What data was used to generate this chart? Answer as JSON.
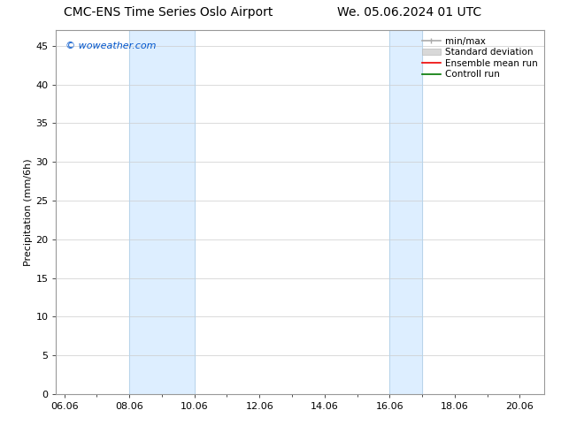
{
  "title_left": "CMC-ENS Time Series Oslo Airport",
  "title_right": "We. 05.06.2024 01 UTC",
  "ylabel": "Precipitation (mm/6h)",
  "watermark": "© woweather.com",
  "watermark_color": "#0055cc",
  "xlim_start": 5.75,
  "xlim_end": 20.75,
  "ylim_bottom": 0,
  "ylim_top": 47,
  "yticks": [
    0,
    5,
    10,
    15,
    20,
    25,
    30,
    35,
    40,
    45
  ],
  "xtick_labels": [
    "06.06",
    "08.06",
    "10.06",
    "12.06",
    "14.06",
    "16.06",
    "18.06",
    "20.06"
  ],
  "xtick_positions": [
    6.0,
    8.0,
    10.0,
    12.0,
    14.0,
    16.0,
    18.0,
    20.0
  ],
  "shaded_regions": [
    {
      "xmin": 8.0,
      "xmax": 10.0,
      "color": "#ddeeff"
    },
    {
      "xmin": 16.0,
      "xmax": 17.0,
      "color": "#ddeeff"
    }
  ],
  "shaded_vlines": [
    8.0,
    10.0,
    16.0,
    17.0
  ],
  "vline_color": "#b8d4ea",
  "legend_entries": [
    {
      "label": "min/max",
      "color": "#aaaaaa",
      "lw": 1.2
    },
    {
      "label": "Standard deviation",
      "color": "#d8d8d8",
      "lw": 6
    },
    {
      "label": "Ensemble mean run",
      "color": "#ee0000",
      "lw": 1.2
    },
    {
      "label": "Controll run",
      "color": "#007700",
      "lw": 1.2
    }
  ],
  "bg_color": "#ffffff",
  "plot_bg_color": "#ffffff",
  "grid_color": "#cccccc",
  "spine_color": "#999999",
  "title_fontsize": 10,
  "label_fontsize": 8,
  "tick_fontsize": 8,
  "watermark_fontsize": 8,
  "legend_fontsize": 7.5
}
